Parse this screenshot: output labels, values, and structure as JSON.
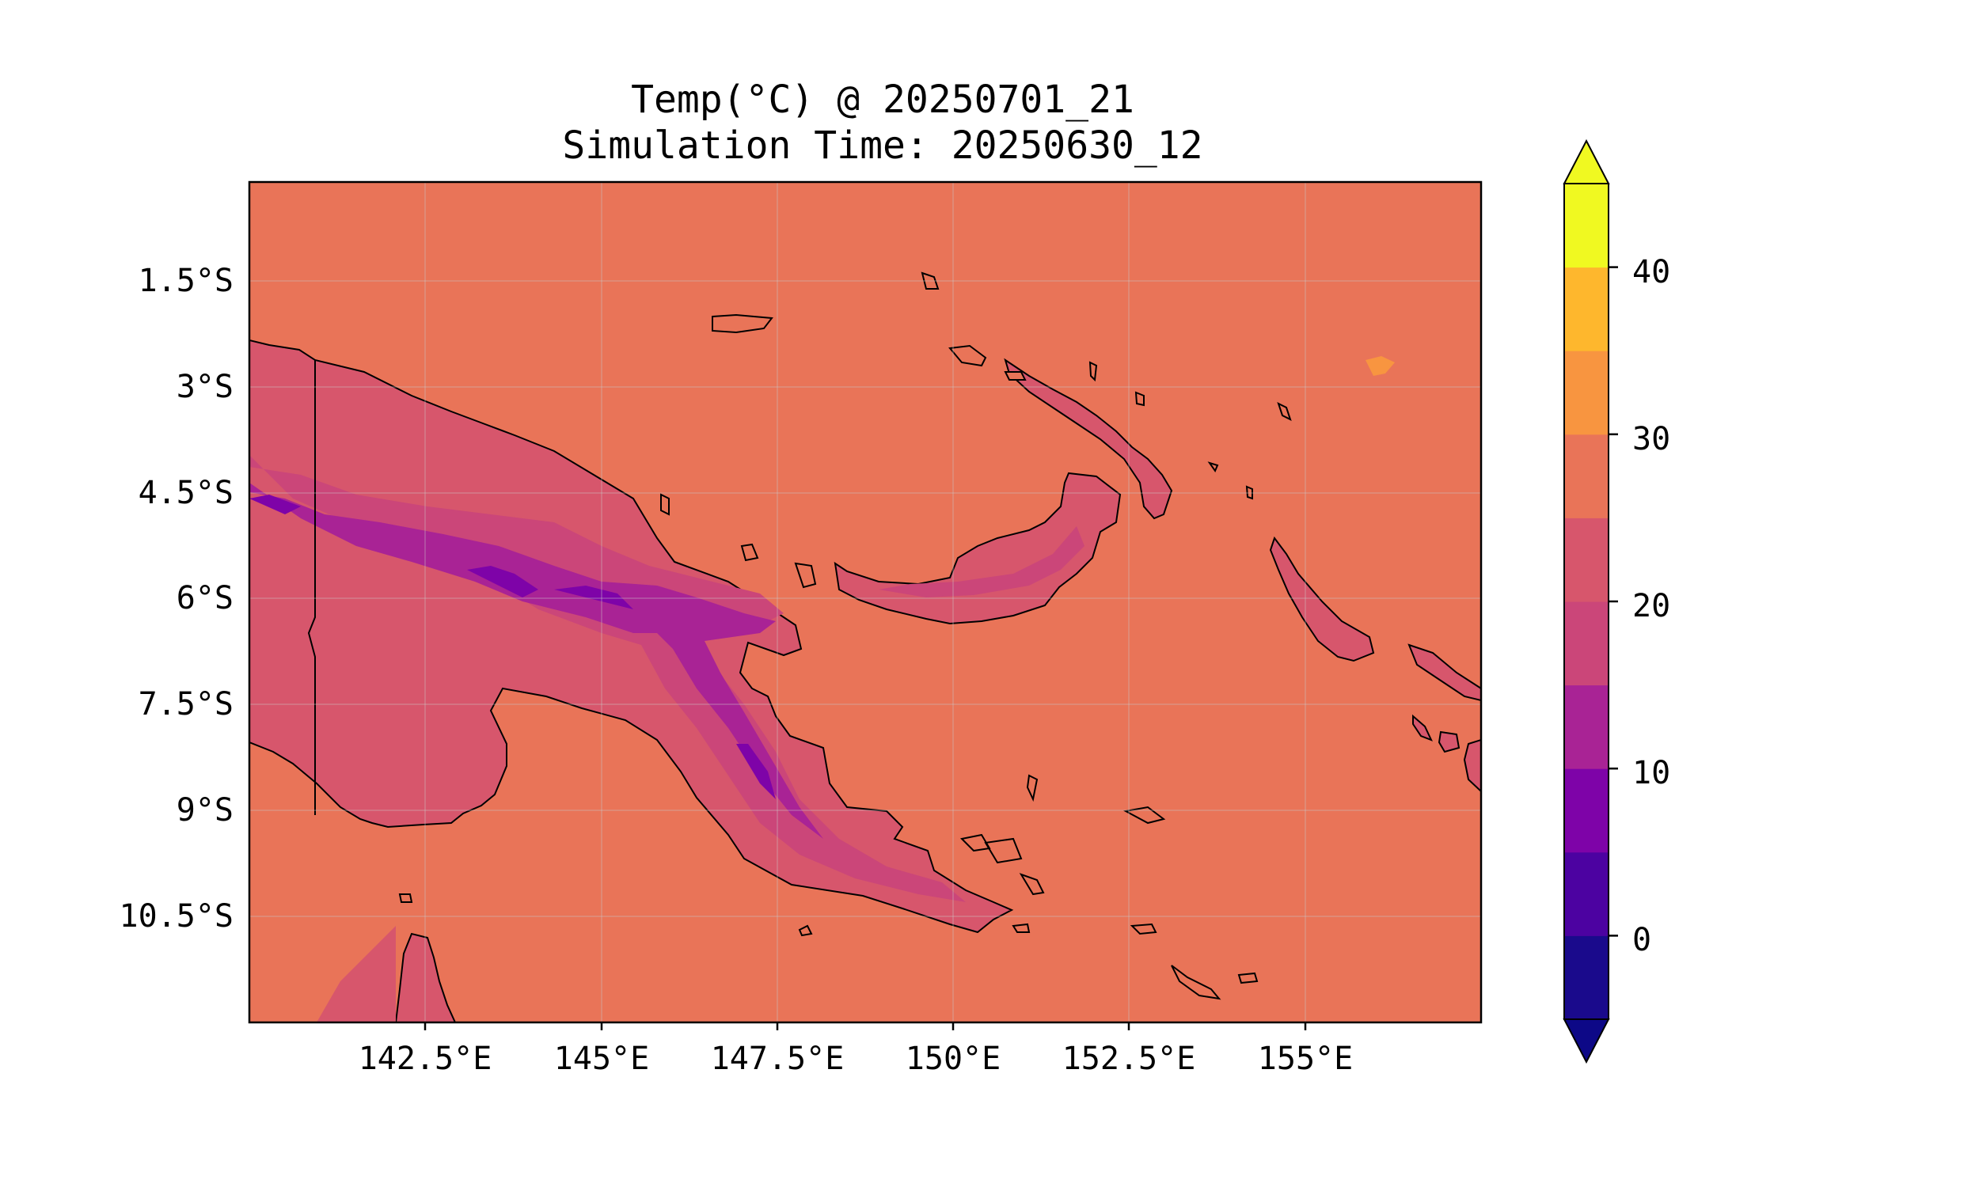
{
  "title": {
    "line1": "Temp(°C) @ 20250701_21",
    "line2": "Simulation Time: 20250630_12"
  },
  "map": {
    "region": "Papua New Guinea",
    "lon_range": [
      140.0,
      157.5
    ],
    "lat_range": [
      -12.0,
      -0.1
    ],
    "ocean_temperature_c": 27,
    "lat_ticks": [
      "1.5°S",
      "3°S",
      "4.5°S",
      "6°S",
      "7.5°S",
      "9°S",
      "10.5°S"
    ],
    "lon_ticks": [
      "142.5°E",
      "145°E",
      "147.5°E",
      "150°E",
      "152.5°E",
      "155°E"
    ],
    "grid": true,
    "coastlines": true
  },
  "colorbar": {
    "ticks": [
      "0",
      "10",
      "20",
      "30",
      "40"
    ],
    "levels": [
      -5,
      0,
      5,
      10,
      15,
      20,
      25,
      30,
      35,
      40,
      45
    ],
    "colors": [
      "#1a0a8c",
      "#4c02a1",
      "#7e03a8",
      "#a92395",
      "#cb4679",
      "#d7566c",
      "#e97458",
      "#f89540",
      "#feb72d",
      "#f0f921"
    ],
    "under_color": "#0d0887",
    "over_color": "#f0f921",
    "extend": "both",
    "colormap": "plasma"
  }
}
